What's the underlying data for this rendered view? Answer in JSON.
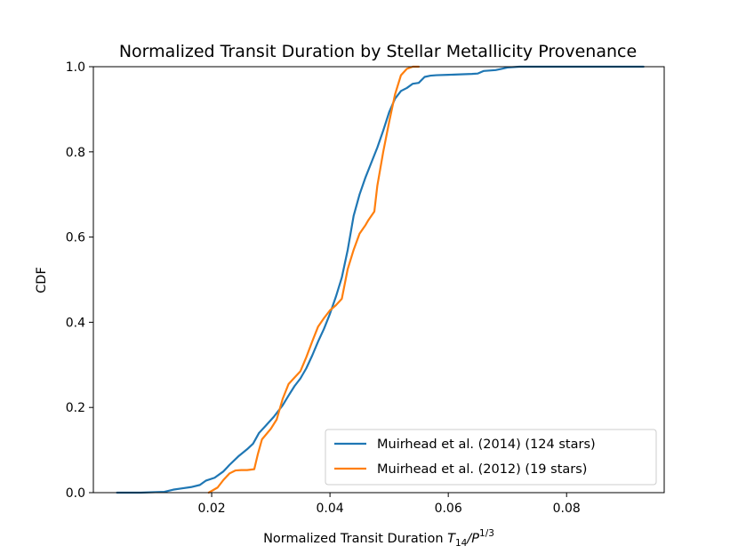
{
  "chart_data": {
    "type": "line",
    "title": "Normalized Transit Duration by Stellar Metallicity Provenance",
    "xlabel_prefix": "Normalized Transit Duration ",
    "xlabel_var": "T",
    "xlabel_sub": "14",
    "xlabel_slash": "/P",
    "xlabel_sup": "1/3",
    "ylabel": "CDF",
    "xlim": [
      0.0,
      0.0965
    ],
    "ylim": [
      0.0,
      1.0
    ],
    "xticks": [
      0.02,
      0.04,
      0.06,
      0.08
    ],
    "xtick_labels": [
      "0.02",
      "0.04",
      "0.06",
      "0.08"
    ],
    "yticks": [
      0.0,
      0.2,
      0.4,
      0.6,
      0.8,
      1.0
    ],
    "ytick_labels": [
      "0.0",
      "0.2",
      "0.4",
      "0.6",
      "0.8",
      "1.0"
    ],
    "legend_position": "lower-right",
    "series": [
      {
        "name": "Muirhead et al. (2014) (124 stars)",
        "color": "#1f77b4",
        "x": [
          0.004,
          0.008,
          0.012,
          0.0135,
          0.015,
          0.0165,
          0.018,
          0.019,
          0.0205,
          0.022,
          0.023,
          0.0245,
          0.026,
          0.027,
          0.028,
          0.029,
          0.0305,
          0.032,
          0.033,
          0.034,
          0.035,
          0.036,
          0.037,
          0.038,
          0.039,
          0.04,
          0.041,
          0.042,
          0.043,
          0.044,
          0.045,
          0.046,
          0.047,
          0.048,
          0.049,
          0.05,
          0.051,
          0.052,
          0.053,
          0.054,
          0.055,
          0.056,
          0.057,
          0.058,
          0.06,
          0.062,
          0.064,
          0.065,
          0.066,
          0.068,
          0.069,
          0.07,
          0.072,
          0.075,
          0.08,
          0.085,
          0.093
        ],
        "y": [
          0.0,
          0.0,
          0.002,
          0.007,
          0.01,
          0.013,
          0.018,
          0.028,
          0.035,
          0.05,
          0.065,
          0.085,
          0.102,
          0.115,
          0.14,
          0.155,
          0.178,
          0.205,
          0.228,
          0.25,
          0.268,
          0.292,
          0.322,
          0.355,
          0.385,
          0.42,
          0.46,
          0.505,
          0.57,
          0.65,
          0.7,
          0.74,
          0.775,
          0.81,
          0.85,
          0.893,
          0.925,
          0.943,
          0.95,
          0.96,
          0.962,
          0.976,
          0.979,
          0.98,
          0.981,
          0.982,
          0.983,
          0.984,
          0.99,
          0.992,
          0.995,
          0.998,
          1.0,
          1.0,
          1.0,
          1.0,
          1.0
        ]
      },
      {
        "name": "Muirhead et al. (2012) (19 stars)",
        "color": "#ff7f0e",
        "x": [
          0.0195,
          0.021,
          0.022,
          0.023,
          0.024,
          0.025,
          0.026,
          0.0272,
          0.0278,
          0.0285,
          0.03,
          0.031,
          0.032,
          0.033,
          0.034,
          0.035,
          0.036,
          0.037,
          0.038,
          0.039,
          0.04,
          0.041,
          0.042,
          0.043,
          0.044,
          0.045,
          0.046,
          0.0465,
          0.0475,
          0.048,
          0.049,
          0.05,
          0.051,
          0.052,
          0.053,
          0.054,
          0.055
        ],
        "y": [
          0.0,
          0.012,
          0.03,
          0.045,
          0.052,
          0.053,
          0.053,
          0.055,
          0.09,
          0.125,
          0.15,
          0.172,
          0.22,
          0.255,
          0.27,
          0.285,
          0.318,
          0.355,
          0.39,
          0.41,
          0.428,
          0.44,
          0.455,
          0.525,
          0.57,
          0.608,
          0.628,
          0.64,
          0.66,
          0.72,
          0.8,
          0.87,
          0.935,
          0.98,
          0.995,
          1.0,
          1.0
        ]
      }
    ]
  }
}
